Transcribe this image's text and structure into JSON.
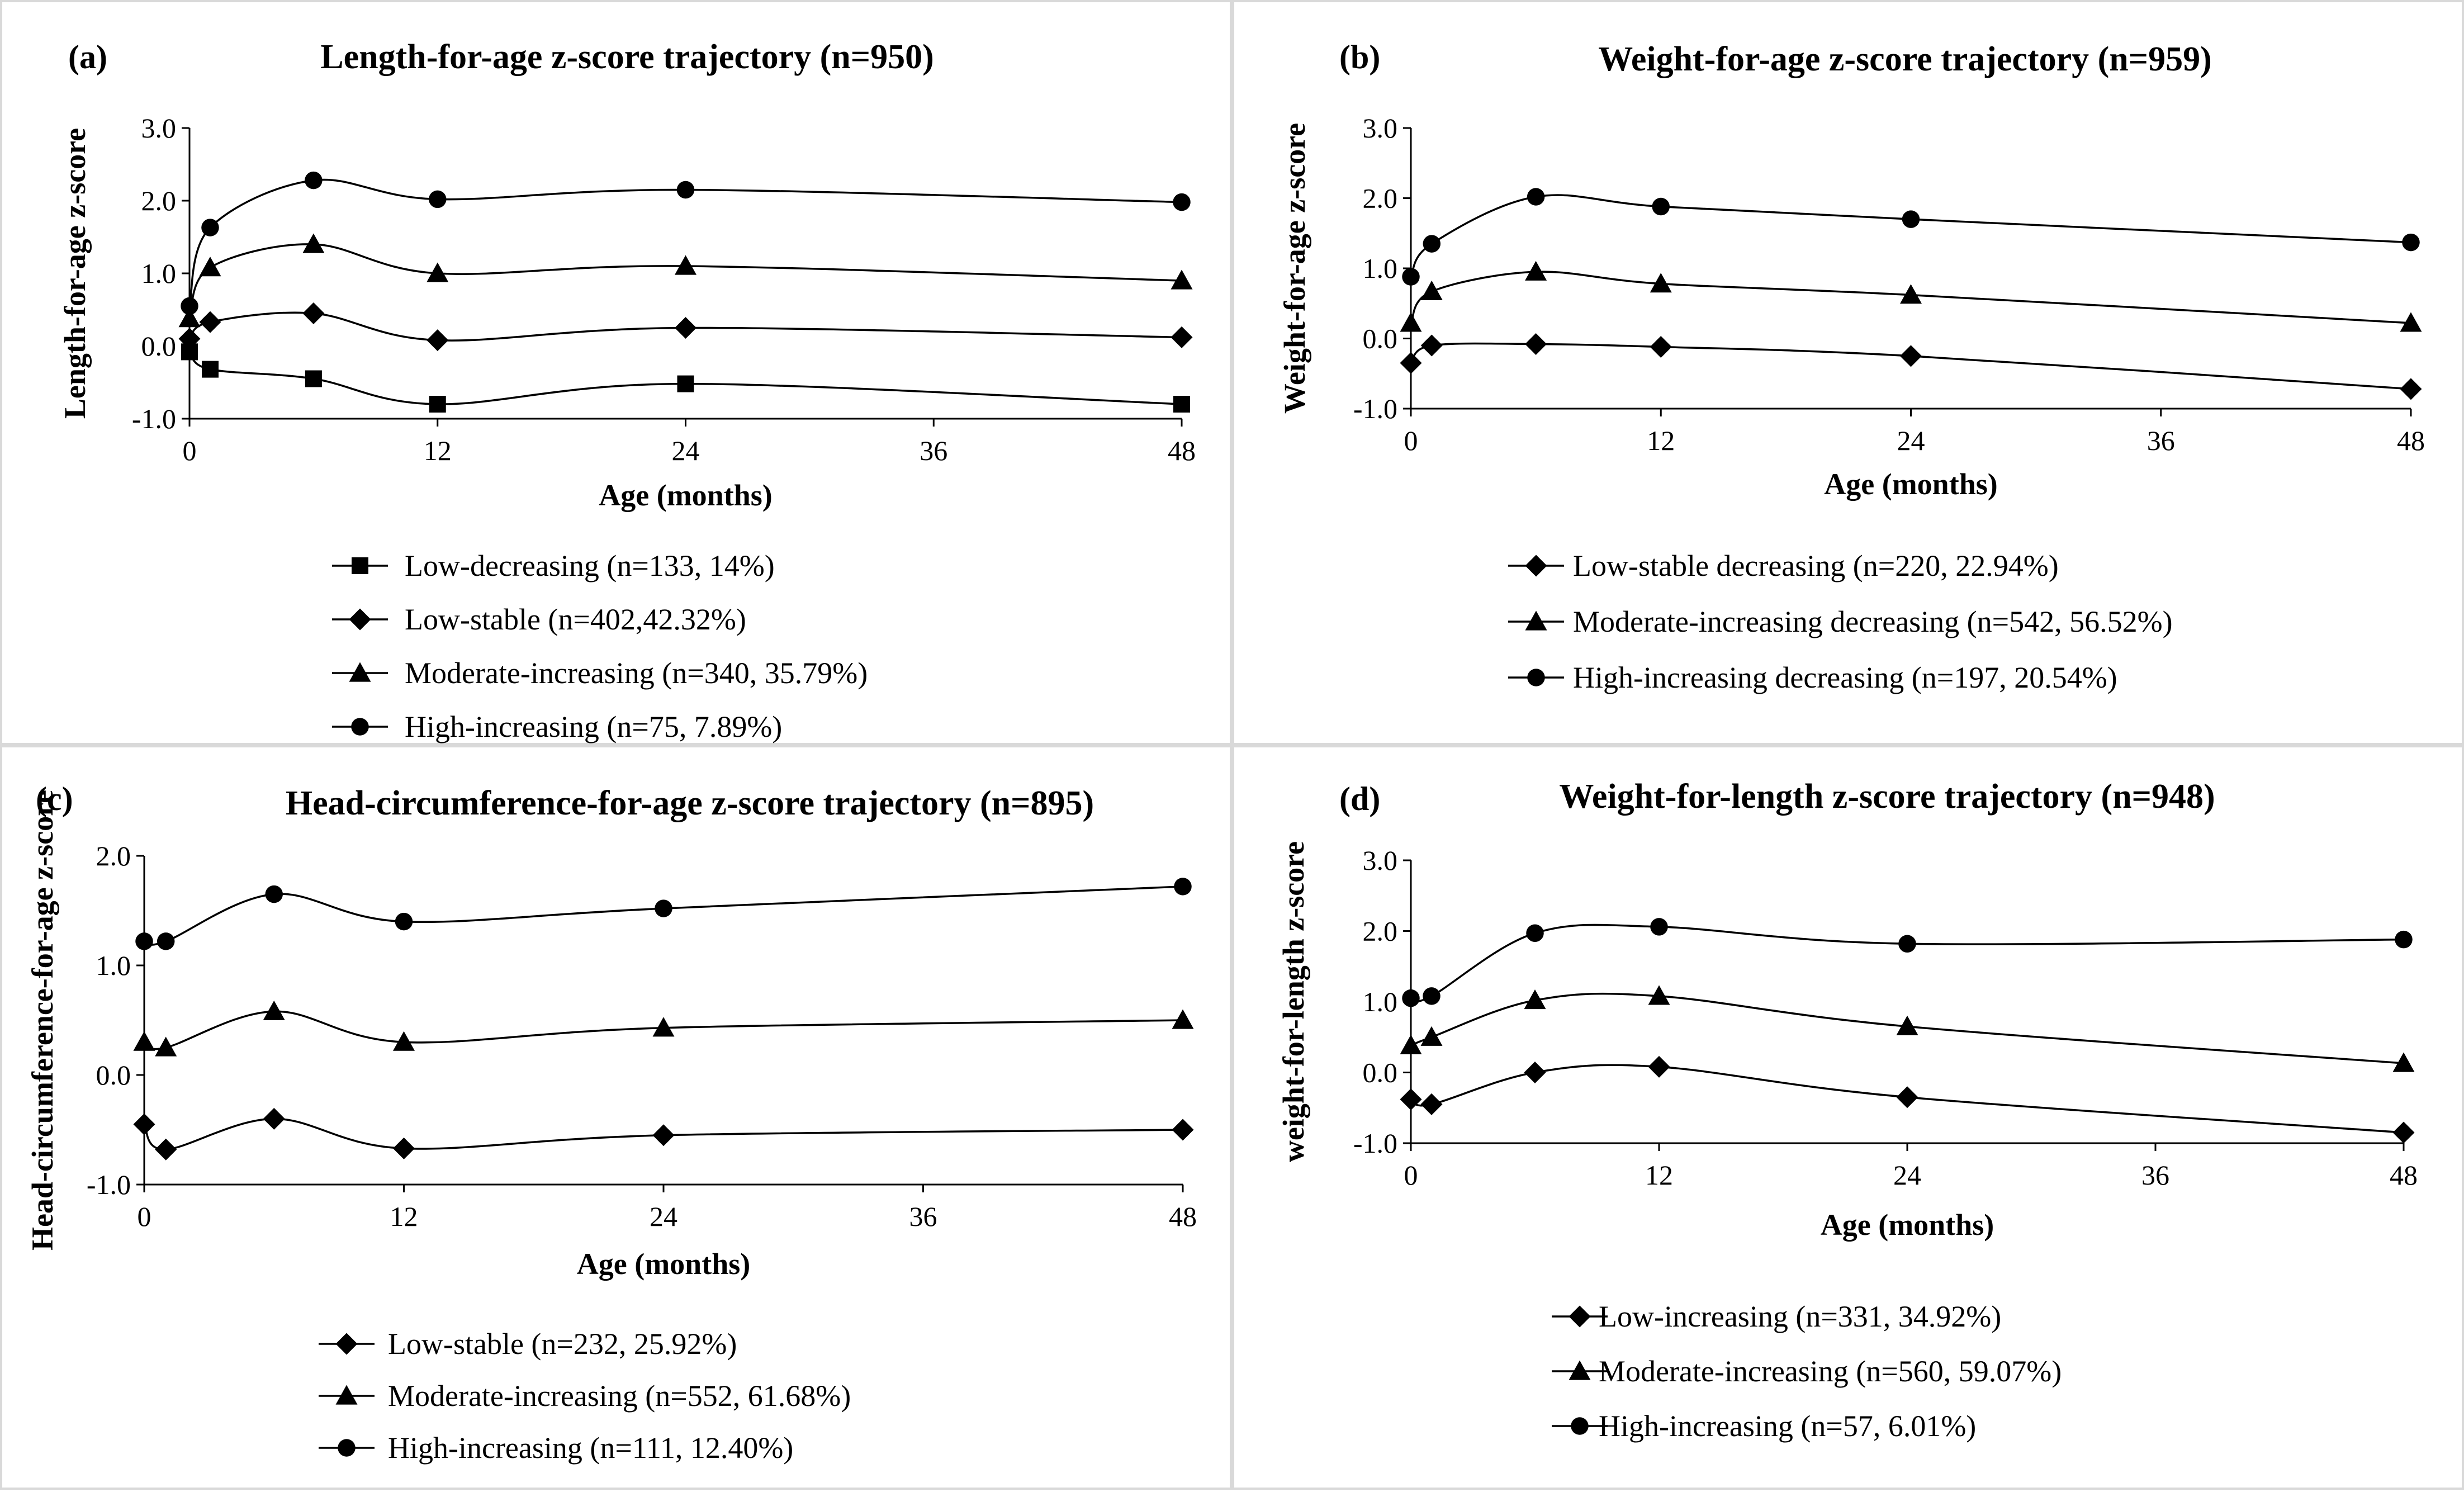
{
  "chart_data": [
    {
      "panel_label": "(a)",
      "type": "line",
      "title": "Length-for-age z-score trajectory (n=950)",
      "xlabel": "Age (months)",
      "ylabel": "Length-for-age z-score",
      "xlim": [
        0,
        48
      ],
      "ylim": [
        -1.0,
        3.0
      ],
      "xticks": [
        0,
        12,
        24,
        36,
        48
      ],
      "yticks": [
        "-1.0",
        "0.0",
        "1.0",
        "2.0",
        "3.0"
      ],
      "x": [
        0,
        1,
        6,
        12,
        24,
        48
      ],
      "grid": false,
      "series": [
        {
          "name": "Low-decreasing (n=133, 14%)",
          "marker": "square",
          "values": [
            -0.08,
            -0.32,
            -0.45,
            -0.8,
            -0.52,
            -0.8
          ]
        },
        {
          "name": "Low-stable (n=402,42.32%)",
          "marker": "diamond",
          "values": [
            0.1,
            0.33,
            0.45,
            0.08,
            0.25,
            0.12
          ]
        },
        {
          "name": "Moderate-increasing (n=340, 35.79%)",
          "marker": "triangle",
          "values": [
            0.38,
            1.08,
            1.4,
            1.0,
            1.1,
            0.9
          ]
        },
        {
          "name": "High-increasing (n=75, 7.89%)",
          "marker": "circle",
          "values": [
            0.55,
            1.63,
            2.28,
            2.02,
            2.15,
            1.98
          ]
        }
      ]
    },
    {
      "panel_label": "(b)",
      "type": "line",
      "title": "Weight-for-age z-score trajectory (n=959)",
      "xlabel": "Age (months)",
      "ylabel": "Weight-for-age z-score",
      "xlim": [
        0,
        48
      ],
      "ylim": [
        -1.0,
        3.0
      ],
      "xticks": [
        0,
        12,
        24,
        36,
        48
      ],
      "yticks": [
        "-1.0",
        "0.0",
        "1.0",
        "2.0",
        "3.0"
      ],
      "x": [
        0,
        1,
        6,
        12,
        24,
        48
      ],
      "grid": false,
      "series": [
        {
          "name": "Low-stable decreasing (n=220, 22.94%)",
          "marker": "diamond",
          "values": [
            -0.35,
            -0.1,
            -0.08,
            -0.12,
            -0.25,
            -0.72
          ]
        },
        {
          "name": "Moderate-increasing decreasing (n=542, 56.52%)",
          "marker": "triangle",
          "values": [
            0.22,
            0.67,
            0.95,
            0.78,
            0.62,
            0.22
          ]
        },
        {
          "name": "High-increasing decreasing (n=197, 20.54%)",
          "marker": "circle",
          "values": [
            0.88,
            1.35,
            2.02,
            1.88,
            1.7,
            1.37
          ]
        }
      ]
    },
    {
      "panel_label": "(c)",
      "type": "line",
      "title": "Head-circumference-for-age z-score trajectory (n=895)",
      "xlabel": "Age (months)",
      "ylabel": "Head-circumference-for-age z-score",
      "xlim": [
        0,
        48
      ],
      "ylim": [
        -1.0,
        2.0
      ],
      "xticks": [
        0,
        12,
        24,
        36,
        48
      ],
      "yticks": [
        "-1.0",
        "0.0",
        "1.0",
        "2.0"
      ],
      "x": [
        0,
        1,
        6,
        12,
        24,
        48
      ],
      "grid": false,
      "series": [
        {
          "name": "Low-stable (n=232, 25.92%)",
          "marker": "diamond",
          "values": [
            -0.45,
            -0.68,
            -0.4,
            -0.67,
            -0.55,
            -0.5
          ]
        },
        {
          "name": "Moderate-increasing (n=552, 61.68%)",
          "marker": "triangle",
          "values": [
            0.3,
            0.25,
            0.58,
            0.3,
            0.43,
            0.5
          ]
        },
        {
          "name": "High-increasing (n=111, 12.40%)",
          "marker": "circle",
          "values": [
            1.22,
            1.22,
            1.65,
            1.4,
            1.52,
            1.72
          ]
        }
      ]
    },
    {
      "panel_label": "(d)",
      "type": "line",
      "title": "Weight-for-length z-score trajectory (n=948)",
      "xlabel": "Age (months)",
      "ylabel": "weight-for-length z-score",
      "xlim": [
        0,
        48
      ],
      "ylim": [
        -1.0,
        3.0
      ],
      "xticks": [
        0,
        12,
        24,
        36,
        48
      ],
      "yticks": [
        "-1.0",
        "0.0",
        "1.0",
        "2.0",
        "3.0"
      ],
      "x": [
        0,
        1,
        6,
        12,
        24,
        48
      ],
      "grid": false,
      "series": [
        {
          "name": "Low-increasing (n=331, 34.92%)",
          "marker": "diamond",
          "values": [
            -0.38,
            -0.45,
            0.0,
            0.08,
            -0.35,
            -0.85
          ]
        },
        {
          "name": "Moderate-increasing (n=560, 59.07%)",
          "marker": "triangle",
          "values": [
            0.38,
            0.5,
            1.02,
            1.08,
            0.65,
            0.13
          ]
        },
        {
          "name": "High-increasing (n=57, 6.01%)",
          "marker": "circle",
          "values": [
            1.05,
            1.08,
            1.97,
            2.06,
            1.82,
            1.88
          ]
        }
      ]
    }
  ]
}
